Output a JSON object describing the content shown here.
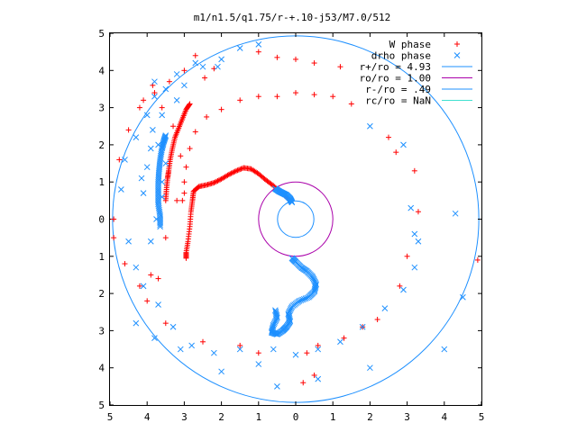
{
  "chart_data": {
    "type": "scatter",
    "title": "m1/n1.5/q1.75/r-+.10-j53/M7.0/512",
    "xlim": [
      -5,
      5
    ],
    "ylim": [
      -5,
      5
    ],
    "x_tick_values": [
      -5,
      -4,
      -3,
      -2,
      -1,
      0,
      1,
      2,
      3,
      4,
      5
    ],
    "x_tick_labels": [
      "5",
      "4",
      "3",
      "2",
      "1",
      "0",
      "1",
      "2",
      "3",
      "4",
      "5"
    ],
    "y_tick_values": [
      5,
      4,
      3,
      2,
      1,
      0,
      -1,
      -2,
      -3,
      -4,
      -5
    ],
    "y_tick_labels": [
      "5",
      "4",
      "3",
      "2",
      "1",
      "0",
      "1",
      "2",
      "3",
      "4",
      "5"
    ],
    "grid": false,
    "legend_position": "top-right",
    "series": [
      {
        "name": "W phase",
        "marker": "plus",
        "color": "#ff0000",
        "points": [
          [
            -1.0,
            3.3
          ],
          [
            -0.5,
            3.3
          ],
          [
            0.0,
            3.4
          ],
          [
            0.5,
            3.35
          ],
          [
            1.0,
            3.3
          ],
          [
            1.5,
            3.1
          ],
          [
            -1.5,
            3.2
          ],
          [
            -2.0,
            2.95
          ],
          [
            -2.4,
            2.75
          ],
          [
            -2.7,
            2.35
          ],
          [
            -2.85,
            1.9
          ],
          [
            -2.95,
            1.4
          ],
          [
            -3.0,
            1.0
          ],
          [
            -3.05,
            0.5
          ],
          [
            -2.7,
            4.4
          ],
          [
            -3.0,
            4.0
          ],
          [
            -3.4,
            3.7
          ],
          [
            -3.8,
            3.4
          ],
          [
            -4.2,
            3.0
          ],
          [
            -4.5,
            2.4
          ],
          [
            -4.75,
            1.6
          ],
          [
            -4.9,
            0.0
          ],
          [
            -4.9,
            -0.5
          ],
          [
            -1.0,
            4.5
          ],
          [
            -0.5,
            4.35
          ],
          [
            0.0,
            4.3
          ],
          [
            0.5,
            4.2
          ],
          [
            1.2,
            4.1
          ],
          [
            2.5,
            2.2
          ],
          [
            2.7,
            1.8
          ],
          [
            3.2,
            1.3
          ],
          [
            3.3,
            0.2
          ],
          [
            3.0,
            -1.0
          ],
          [
            2.8,
            -1.8
          ],
          [
            2.2,
            -2.7
          ],
          [
            1.8,
            -2.9
          ],
          [
            1.3,
            -3.2
          ],
          [
            0.6,
            -3.4
          ],
          [
            0.3,
            -3.6
          ],
          [
            -1.0,
            -3.6
          ],
          [
            -1.5,
            -3.4
          ],
          [
            -2.5,
            -3.3
          ],
          [
            -3.5,
            -2.8
          ],
          [
            -3.7,
            -1.6
          ],
          [
            -3.9,
            -1.5
          ],
          [
            -4.0,
            -2.2
          ],
          [
            -3.5,
            -0.5
          ],
          [
            -3.2,
            0.5
          ],
          [
            -3.0,
            0.7
          ],
          [
            -3.1,
            1.7
          ],
          [
            -3.3,
            2.5
          ],
          [
            0.2,
            -4.4
          ],
          [
            0.5,
            -4.2
          ],
          [
            -4.6,
            -1.2
          ],
          [
            4.9,
            -1.1
          ],
          [
            -4.2,
            -1.8
          ],
          [
            -3.6,
            3.0
          ],
          [
            -4.1,
            3.2
          ],
          [
            -3.85,
            3.6
          ],
          [
            -2.45,
            3.8
          ],
          [
            -2.2,
            4.05
          ]
        ],
        "curves": [
          [
            [
              -2.95,
              -1.05
            ],
            [
              -2.95,
              -0.9
            ],
            [
              -2.9,
              -0.6
            ],
            [
              -2.85,
              -0.2
            ],
            [
              -2.82,
              0.2
            ],
            [
              -2.78,
              0.5
            ],
            [
              -2.75,
              0.75
            ],
            [
              -2.6,
              0.88
            ],
            [
              -2.4,
              0.92
            ],
            [
              -2.2,
              0.98
            ],
            [
              -2.0,
              1.08
            ],
            [
              -1.8,
              1.2
            ],
            [
              -1.6,
              1.3
            ],
            [
              -1.4,
              1.38
            ],
            [
              -1.2,
              1.35
            ],
            [
              -1.0,
              1.22
            ],
            [
              -0.8,
              1.05
            ],
            [
              -0.6,
              0.9
            ],
            [
              -0.4,
              0.72
            ],
            [
              -0.2,
              0.55
            ]
          ],
          [
            [
              -3.5,
              0.5
            ],
            [
              -3.48,
              0.8
            ],
            [
              -3.45,
              1.1
            ],
            [
              -3.42,
              1.3
            ],
            [
              -3.38,
              1.6
            ],
            [
              -3.32,
              1.9
            ],
            [
              -3.25,
              2.2
            ],
            [
              -3.15,
              2.45
            ],
            [
              -3.05,
              2.7
            ],
            [
              -2.95,
              2.95
            ],
            [
              -2.85,
              3.1
            ]
          ]
        ]
      },
      {
        "name": "drho phase",
        "marker": "cross",
        "color": "#1e90ff",
        "points": [
          [
            -1.0,
            4.7
          ],
          [
            -1.5,
            4.6
          ],
          [
            -2.0,
            4.3
          ],
          [
            -2.5,
            4.1
          ],
          [
            -3.2,
            3.9
          ],
          [
            -3.5,
            3.5
          ],
          [
            -3.8,
            3.3
          ],
          [
            -4.0,
            2.8
          ],
          [
            -4.3,
            2.2
          ],
          [
            -4.6,
            1.6
          ],
          [
            -4.7,
            0.8
          ],
          [
            -4.5,
            -0.6
          ],
          [
            -4.3,
            -1.3
          ],
          [
            -3.7,
            -2.3
          ],
          [
            -3.3,
            -2.9
          ],
          [
            -2.8,
            -3.4
          ],
          [
            -2.2,
            -3.6
          ],
          [
            -1.5,
            -3.5
          ],
          [
            -0.6,
            -3.5
          ],
          [
            0.0,
            -3.65
          ],
          [
            0.6,
            -3.5
          ],
          [
            1.2,
            -3.3
          ],
          [
            1.8,
            -2.9
          ],
          [
            2.4,
            -2.4
          ],
          [
            2.9,
            -1.9
          ],
          [
            3.2,
            -1.3
          ],
          [
            3.3,
            -0.6
          ],
          [
            4.3,
            0.15
          ],
          [
            4.5,
            -2.1
          ],
          [
            4.0,
            -3.5
          ],
          [
            2.0,
            -4.0
          ],
          [
            0.6,
            -4.3
          ],
          [
            -0.5,
            -4.5
          ],
          [
            -2.0,
            -4.1
          ],
          [
            -3.1,
            -3.5
          ],
          [
            -3.8,
            -3.2
          ],
          [
            -4.3,
            -2.8
          ],
          [
            -1.0,
            -3.9
          ],
          [
            2.0,
            2.5
          ],
          [
            2.9,
            2.0
          ],
          [
            3.1,
            0.3
          ],
          [
            3.2,
            -0.4
          ],
          [
            -3.6,
            0.6
          ],
          [
            -3.75,
            0.0
          ],
          [
            -3.9,
            -0.6
          ],
          [
            -3.7,
            2.0
          ],
          [
            -3.5,
            1.5
          ],
          [
            -3.6,
            1.0
          ],
          [
            -4.1,
            0.7
          ],
          [
            -4.15,
            1.1
          ],
          [
            -4.0,
            1.4
          ],
          [
            -3.9,
            1.9
          ],
          [
            -3.85,
            2.4
          ],
          [
            -3.6,
            2.8
          ],
          [
            -3.2,
            3.2
          ],
          [
            -3.0,
            3.6
          ],
          [
            -2.7,
            4.2
          ],
          [
            -2.1,
            4.1
          ],
          [
            -3.8,
            3.7
          ],
          [
            -4.1,
            -1.8
          ]
        ],
        "curves": [
          [
            [
              -0.55,
              0.82
            ],
            [
              -0.45,
              0.75
            ],
            [
              -0.35,
              0.7
            ],
            [
              -0.25,
              0.65
            ],
            [
              -0.15,
              0.55
            ],
            [
              -0.1,
              0.45
            ]
          ],
          [
            [
              -0.1,
              -1.05
            ],
            [
              0.0,
              -1.15
            ],
            [
              0.15,
              -1.3
            ],
            [
              0.3,
              -1.4
            ],
            [
              0.45,
              -1.55
            ],
            [
              0.55,
              -1.75
            ],
            [
              0.5,
              -1.95
            ],
            [
              0.35,
              -2.1
            ],
            [
              0.1,
              -2.2
            ],
            [
              -0.1,
              -2.35
            ],
            [
              -0.2,
              -2.55
            ],
            [
              -0.15,
              -2.75
            ],
            [
              -0.25,
              -2.9
            ],
            [
              -0.35,
              -3.0
            ],
            [
              -0.5,
              -3.1
            ],
            [
              -0.65,
              -3.05
            ],
            [
              -0.6,
              -2.85
            ],
            [
              -0.5,
              -2.65
            ],
            [
              -0.55,
              -2.45
            ]
          ],
          [
            [
              -3.65,
              -0.2
            ],
            [
              -3.65,
              0.1
            ],
            [
              -3.7,
              0.4
            ],
            [
              -3.7,
              0.7
            ],
            [
              -3.7,
              1.0
            ],
            [
              -3.68,
              1.3
            ],
            [
              -3.65,
              1.6
            ],
            [
              -3.6,
              1.9
            ],
            [
              -3.55,
              2.1
            ],
            [
              -3.5,
              2.25
            ]
          ]
        ]
      }
    ],
    "circles": [
      {
        "label": "r+/ro = 4.93",
        "radius": 4.93,
        "color": "#1e90ff"
      },
      {
        "label": "ro/ro = 1.00",
        "radius": 1.0,
        "color": "#aa00aa"
      },
      {
        "label": "r-/ro = .49",
        "radius": 0.49,
        "color": "#1e90ff"
      },
      {
        "label": "rc/ro = NaN",
        "radius": null,
        "color": "#40e0d0"
      }
    ]
  }
}
